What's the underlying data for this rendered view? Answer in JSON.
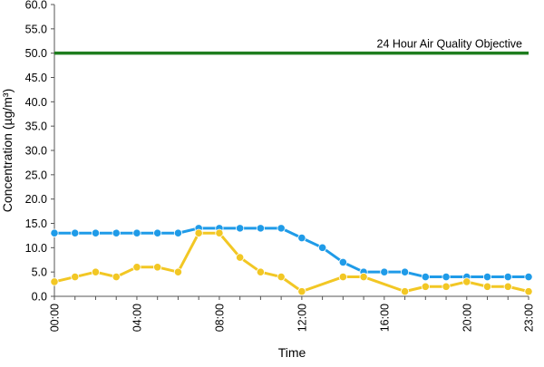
{
  "chart_data": {
    "type": "line",
    "xlabel": "Time",
    "ylabel": "Concentration (µg/m³)",
    "ylim": [
      0,
      60
    ],
    "yticks": [
      "0.0",
      "5.0",
      "10.0",
      "15.0",
      "20.0",
      "25.0",
      "30.0",
      "35.0",
      "40.0",
      "45.0",
      "50.0",
      "55.0",
      "60.0"
    ],
    "xticks": [
      "00:00",
      "04:00",
      "08:00",
      "12:00",
      "16:00",
      "20:00",
      "23:00"
    ],
    "x": [
      "00:00",
      "01:00",
      "02:00",
      "03:00",
      "04:00",
      "05:00",
      "06:00",
      "07:00",
      "08:00",
      "09:00",
      "10:00",
      "11:00",
      "12:00",
      "13:00",
      "14:00",
      "15:00",
      "16:00",
      "17:00",
      "18:00",
      "19:00",
      "20:00",
      "21:00",
      "22:00",
      "23:00"
    ],
    "series": [
      {
        "color": "#1f9be8",
        "values": [
          13,
          13,
          13,
          13,
          13,
          13,
          13,
          14,
          14,
          14,
          14,
          14,
          12,
          10,
          7,
          5,
          5,
          5,
          4,
          4,
          4,
          4,
          4,
          4
        ]
      },
      {
        "color": "#f2c724",
        "values": [
          3,
          4,
          5,
          4,
          6,
          6,
          5,
          13,
          13,
          8,
          5,
          4,
          1,
          null,
          4,
          4,
          null,
          1,
          2,
          2,
          3,
          2,
          2,
          1
        ]
      }
    ],
    "reference_lines": [
      {
        "value": 50,
        "label": "24 Hour Air Quality Objective",
        "color": "#1e7d1e"
      }
    ],
    "grid": false,
    "legend": "none"
  }
}
